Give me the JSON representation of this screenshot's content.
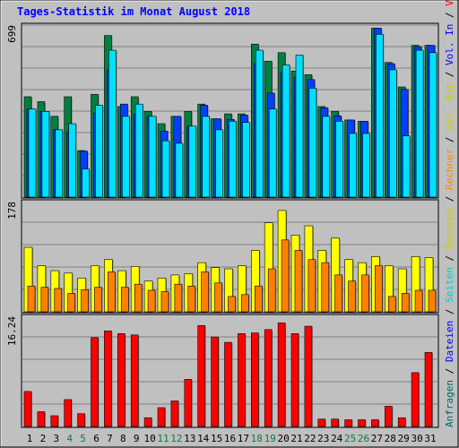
{
  "title": "Tages-Statistik im Monat August 2018",
  "right_label": [
    {
      "text": "Anfragen",
      "color": "#006666"
    },
    {
      "text": " / ",
      "color": "#000000"
    },
    {
      "text": "Dateien",
      "color": "#0000ff"
    },
    {
      "text": " / ",
      "color": "#000000"
    },
    {
      "text": "Seiten",
      "color": "#00cccc"
    },
    {
      "text": " / ",
      "color": "#000000"
    },
    {
      "text": "Besuche",
      "color": "#cccc00"
    },
    {
      "text": " / ",
      "color": "#000000"
    },
    {
      "text": "Rechner",
      "color": "#ff8800"
    },
    {
      "text": " / ",
      "color": "#000000"
    },
    {
      "text": "Vol. Out",
      "color": "#cccc00"
    },
    {
      "text": " / ",
      "color": "#000000"
    },
    {
      "text": "Vol. In",
      "color": "#0000ff"
    },
    {
      "text": " / ",
      "color": "#000000"
    },
    {
      "text": "Volumen",
      "color": "#ff0000"
    }
  ],
  "chart_data": {
    "type": "bar",
    "x": [
      "1",
      "2",
      "3",
      "4",
      "5",
      "6",
      "7",
      "8",
      "9",
      "10",
      "11",
      "12",
      "13",
      "14",
      "15",
      "16",
      "17",
      "18",
      "19",
      "20",
      "21",
      "22",
      "23",
      "24",
      "25",
      "26",
      "27",
      "28",
      "29",
      "30",
      "31"
    ],
    "weekend_days": [
      "4",
      "5",
      "11",
      "12",
      "18",
      "19",
      "25",
      "26"
    ],
    "colors": {
      "anfragen": "#008040",
      "dateien": "#0040ff",
      "seiten": "#00e0ff",
      "besuche": "#ffff00",
      "rechner": "#ff8000",
      "volumen": "#ff0000",
      "weekday_label": "#000000",
      "weekend_label": "#008040"
    },
    "panels": [
      {
        "name": "top",
        "max_label": "699",
        "ymax": 699,
        "series": [
          {
            "key": "anfragen",
            "values": [
              410,
              390,
              330,
              410,
              190,
              420,
              660,
              370,
              410,
              350,
              300,
              330,
              350,
              380,
              320,
              340,
              340,
              625,
              555,
              590,
              515,
              500,
              370,
              350,
              315,
              310,
              690,
              550,
              450,
              620,
              620
            ]
          },
          {
            "key": "dateien",
            "values": [
              360,
              350,
              275,
              265,
              188,
              342,
              520,
              380,
              338,
              330,
              270,
              330,
              290,
              375,
              320,
              317,
              335,
              545,
              425,
              510,
              490,
              480,
              365,
              332,
              315,
              310,
              690,
              545,
              440,
              615,
              620
            ]
          },
          {
            "key": "seiten",
            "values": [
              360,
              350,
              275,
              300,
              115,
              375,
              600,
              330,
              380,
              330,
              230,
              220,
              290,
              330,
              275,
              310,
              305,
              600,
              360,
              540,
              580,
              445,
              330,
              310,
              260,
              260,
              665,
              520,
              250,
              600,
              590
            ]
          }
        ]
      },
      {
        "name": "middle",
        "max_label": "178",
        "ymax": 178,
        "series": [
          {
            "key": "besuche",
            "values": [
              105,
              75,
              67,
              63,
              55,
              75,
              85,
              67,
              74,
              50,
              55,
              60,
              62,
              80,
              72,
              70,
              75,
              100,
              145,
              165,
              125,
              140,
              100,
              120,
              85,
              80,
              90,
              75,
              70,
              90,
              88
            ]
          },
          {
            "key": "rechner",
            "values": [
              42,
              40,
              38,
              30,
              36,
              40,
              65,
              40,
              45,
              35,
              33,
              45,
              42,
              65,
              47,
              25,
              28,
              42,
              70,
              117,
              100,
              85,
              80,
              60,
              50,
              60,
              75,
              25,
              30,
              35,
              35
            ]
          }
        ]
      },
      {
        "name": "bottom",
        "max_label": "16.24",
        "ymax": 16.24,
        "series": [
          {
            "key": "volumen",
            "values": [
              5.2,
              2.2,
              1.6,
              4.0,
              1.9,
              13.2,
              14.2,
              13.8,
              13.6,
              1.3,
              2.8,
              3.8,
              7.0,
              15.0,
              13.3,
              12.5,
              13.8,
              13.9,
              14.4,
              15.4,
              13.8,
              14.9,
              1.1,
              1.1,
              1.0,
              1.0,
              1.0,
              3.0,
              1.3,
              8.0,
              11.0
            ]
          }
        ]
      }
    ]
  }
}
